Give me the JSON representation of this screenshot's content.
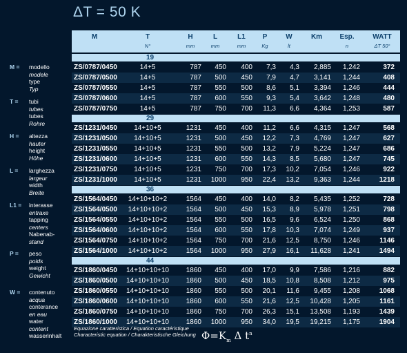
{
  "title": "ΔT = 50 K",
  "headers": [
    {
      "label": "M",
      "sub": ""
    },
    {
      "label": "T",
      "sub": "N°"
    },
    {
      "label": "H",
      "sub": "mm"
    },
    {
      "label": "L",
      "sub": "mm"
    },
    {
      "label": "L1",
      "sub": "mm"
    },
    {
      "label": "P",
      "sub": "Kg"
    },
    {
      "label": "W",
      "sub": "lt"
    },
    {
      "label": "Km",
      "sub": ""
    },
    {
      "label": "Esp.",
      "sub": "n"
    },
    {
      "label": "WATT",
      "sub": "ΔT 50°"
    }
  ],
  "legend": [
    {
      "key": "M =",
      "lines": [
        "modello",
        "modele",
        "type",
        "Typ"
      ]
    },
    {
      "key": "T =",
      "lines": [
        "tubi",
        "tubes",
        "tubes",
        "Rohre"
      ]
    },
    {
      "key": "H =",
      "lines": [
        "altezza",
        "hauter",
        "height",
        "Höhe"
      ]
    },
    {
      "key": "L =",
      "lines": [
        "larghezza",
        "largeur",
        "width",
        "Breite"
      ]
    },
    {
      "key": "L1 =",
      "lines": [
        "interasse",
        "entraxe",
        "tapping",
        "centers",
        "Nabenab-",
        "stand"
      ]
    },
    {
      "key": "P =",
      "lines": [
        "peso",
        "poids",
        "weight",
        "Gewicht"
      ]
    },
    {
      "key": "W =",
      "lines": [
        "contenuto",
        "acqua",
        "conterance",
        "en eau",
        "water",
        "content",
        "wasserinhalt"
      ]
    }
  ],
  "groups": [
    {
      "label": "19",
      "rows": [
        [
          "ZS/0787/0450",
          "14+5",
          "787",
          "450",
          "400",
          "7,3",
          "4,3",
          "2,885",
          "1,242",
          "372"
        ],
        [
          "ZS/0787/0500",
          "14+5",
          "787",
          "500",
          "450",
          "7,9",
          "4,7",
          "3,141",
          "1,244",
          "408"
        ],
        [
          "ZS/0787/0550",
          "14+5",
          "787",
          "550",
          "500",
          "8,6",
          "5,1",
          "3,394",
          "1,246",
          "444"
        ],
        [
          "ZS/0787/0600",
          "14+5",
          "787",
          "600",
          "550",
          "9,3",
          "5,4",
          "3,642",
          "1,248",
          "480"
        ],
        [
          "ZS/0787/0750",
          "14+5",
          "787",
          "750",
          "700",
          "11,3",
          "6,6",
          "4,364",
          "1,253",
          "587"
        ]
      ]
    },
    {
      "label": "29",
      "rows": [
        [
          "ZS/1231/0450",
          "14+10+5",
          "1231",
          "450",
          "400",
          "11,2",
          "6,6",
          "4,315",
          "1,247",
          "568"
        ],
        [
          "ZS/1231/0500",
          "14+10+5",
          "1231",
          "500",
          "450",
          "12,2",
          "7,3",
          "4,769",
          "1,247",
          "627"
        ],
        [
          "ZS/1231/0550",
          "14+10+5",
          "1231",
          "550",
          "500",
          "13,2",
          "7,9",
          "5,224",
          "1,247",
          "686"
        ],
        [
          "ZS/1231/0600",
          "14+10+5",
          "1231",
          "600",
          "550",
          "14,3",
          "8,5",
          "5,680",
          "1,247",
          "745"
        ],
        [
          "ZS/1231/0750",
          "14+10+5",
          "1231",
          "750",
          "700",
          "17,3",
          "10,2",
          "7,054",
          "1,246",
          "922"
        ],
        [
          "ZS/1231/1000",
          "14+10+5",
          "1231",
          "1000",
          "950",
          "22,4",
          "13,2",
          "9,363",
          "1,244",
          "1218"
        ]
      ]
    },
    {
      "label": "36",
      "rows": [
        [
          "ZS/1564/0450",
          "14+10+10+2",
          "1564",
          "450",
          "400",
          "14,0",
          "8,2",
          "5,435",
          "1,252",
          "728"
        ],
        [
          "ZS/1564/0500",
          "14+10+10+2",
          "1564",
          "500",
          "450",
          "15,3",
          "8,9",
          "5,978",
          "1,251",
          "798"
        ],
        [
          "ZS/1564/0550",
          "14+10+10+2",
          "1564",
          "550",
          "500",
          "16,5",
          "9,6",
          "6,524",
          "1,250",
          "868"
        ],
        [
          "ZS/1564/0600",
          "14+10+10+2",
          "1564",
          "600",
          "550",
          "17,8",
          "10,3",
          "7,074",
          "1,249",
          "937"
        ],
        [
          "ZS/1564/0750",
          "14+10+10+2",
          "1564",
          "750",
          "700",
          "21,6",
          "12,5",
          "8,750",
          "1,246",
          "1146"
        ],
        [
          "ZS/1564/1000",
          "14+10+10+2",
          "1564",
          "1000",
          "950",
          "27,9",
          "16,1",
          "11,628",
          "1,241",
          "1494"
        ]
      ]
    },
    {
      "label": "44",
      "rows": [
        [
          "ZS/1860/0450",
          "14+10+10+10",
          "1860",
          "450",
          "400",
          "17,0",
          "9,9",
          "7,586",
          "1,216",
          "882"
        ],
        [
          "ZS/1860/0500",
          "14+10+10+10",
          "1860",
          "500",
          "450",
          "18,5",
          "10,8",
          "8,508",
          "1,212",
          "975"
        ],
        [
          "ZS/1860/0550",
          "14+10+10+10",
          "1860",
          "550",
          "500",
          "20,1",
          "11,6",
          "9,455",
          "1,208",
          "1068"
        ],
        [
          "ZS/1860/0600",
          "14+10+10+10",
          "1860",
          "600",
          "550",
          "21,6",
          "12,5",
          "10,428",
          "1,205",
          "1161"
        ],
        [
          "ZS/1860/0750",
          "14+10+10+10",
          "1860",
          "750",
          "700",
          "26,3",
          "15,1",
          "13,508",
          "1,193",
          "1439"
        ],
        [
          "ZS/1860/1000",
          "14+10+10+10",
          "1860",
          "1000",
          "950",
          "34,0",
          "19,5",
          "19,215",
          "1,175",
          "1904"
        ]
      ]
    }
  ],
  "footer": {
    "lines": [
      "Equazione caratteristica / Equation caractéristique",
      "Characteristic equation / Charakteristische Gleichung"
    ],
    "formula_phi": "Φ",
    "formula_eq": "=K",
    "formula_sub": "m",
    "formula_delta": " Δ t",
    "formula_sup": "n"
  }
}
